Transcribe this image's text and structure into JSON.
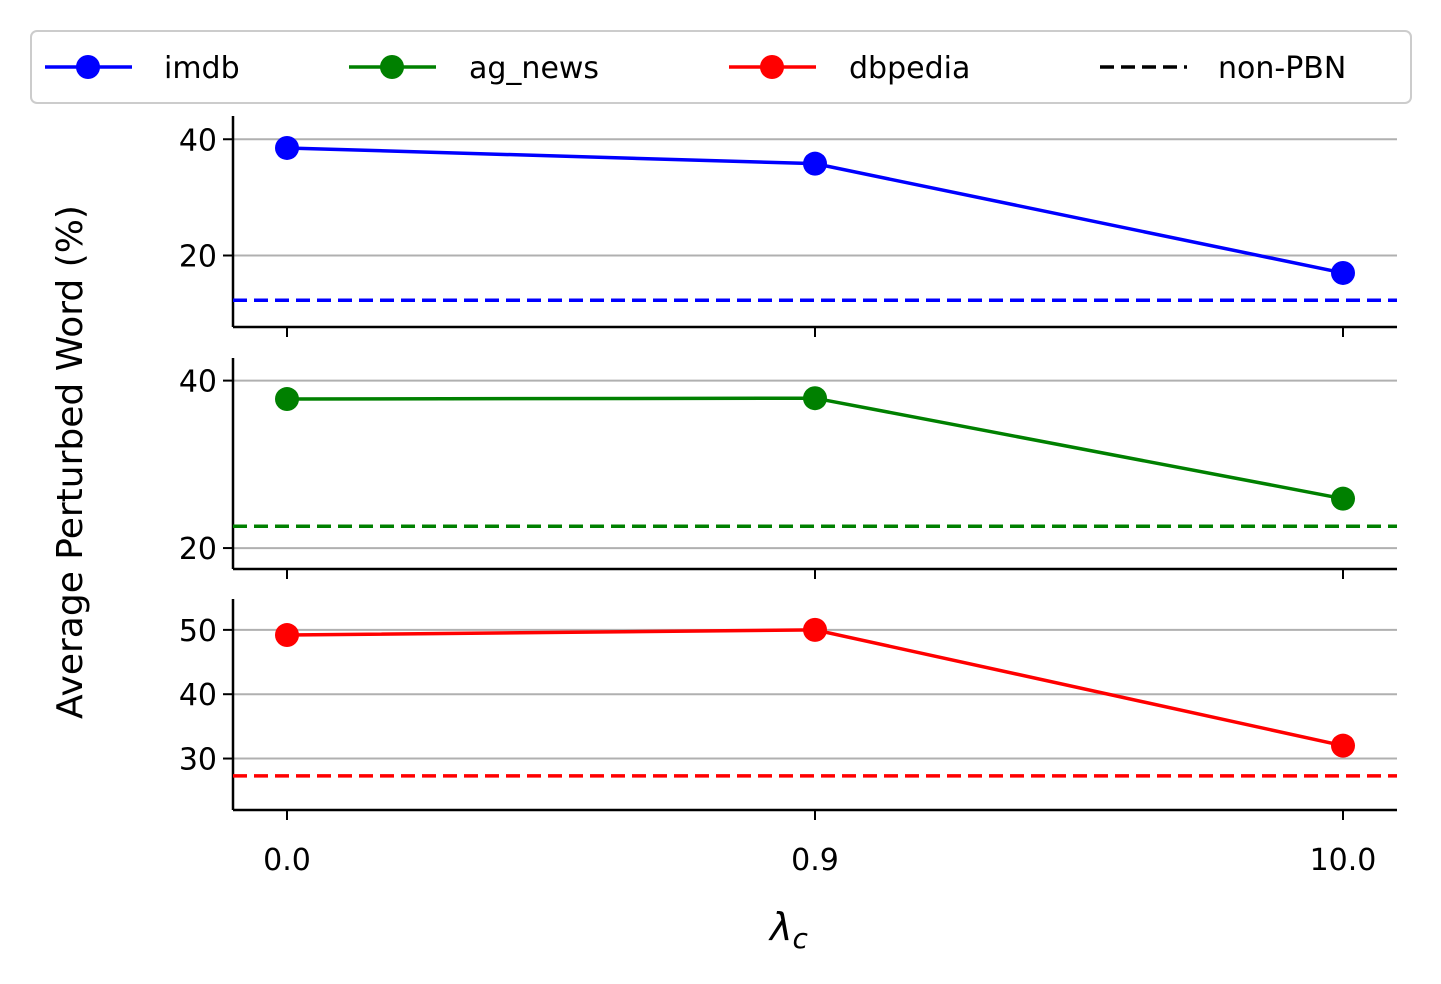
{
  "chart_data": {
    "type": "line",
    "x_categories": [
      "0.0",
      "0.9",
      "10.0"
    ],
    "xlabel_main": "λ",
    "xlabel_sub": "c",
    "ylabel": "Average Perturbed Word (%)",
    "legend": {
      "placement": "top",
      "entries": [
        {
          "name": "imdb",
          "color": "#0000ff",
          "style": "solid-marker"
        },
        {
          "name": "ag_news",
          "color": "#008000",
          "style": "solid-marker"
        },
        {
          "name": "dbpedia",
          "color": "#ff0000",
          "style": "solid-marker"
        },
        {
          "name": "non-PBN",
          "color": "#000000",
          "style": "dashed"
        }
      ]
    },
    "grid": "horizontal",
    "panels": [
      {
        "series": "imdb",
        "color": "#0000ff",
        "values": [
          38.5,
          35.8,
          17.0
        ],
        "baseline": 12.3,
        "ylim": [
          7.7,
          44.0
        ],
        "yticks": [
          "20",
          "40"
        ],
        "ytick_values": [
          20,
          40
        ]
      },
      {
        "series": "ag_news",
        "color": "#008000",
        "values": [
          37.8,
          37.9,
          25.9
        ],
        "baseline": 22.6,
        "ylim": [
          17.5,
          42.7
        ],
        "yticks": [
          "20",
          "40"
        ],
        "ytick_values": [
          20,
          40
        ]
      },
      {
        "series": "dbpedia",
        "color": "#ff0000",
        "values": [
          49.2,
          50.0,
          32.0
        ],
        "baseline": 27.3,
        "ylim": [
          22.0,
          54.8
        ],
        "yticks": [
          "30",
          "40",
          "50"
        ],
        "ytick_values": [
          30,
          40,
          50
        ]
      }
    ]
  }
}
